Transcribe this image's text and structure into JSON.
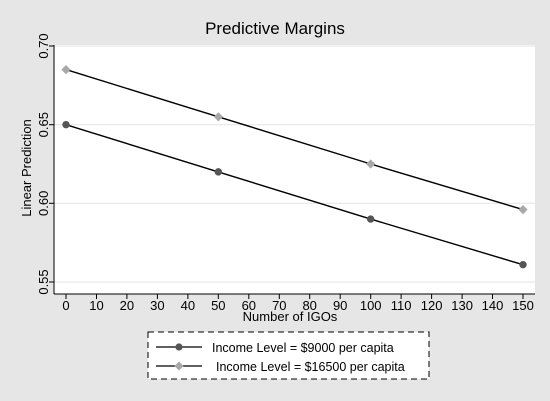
{
  "chart_data": {
    "type": "line",
    "title": "Predictive Margins",
    "xlabel": "Number of IGOs",
    "ylabel": "Linear Prediction",
    "x": [
      0,
      50,
      100,
      150
    ],
    "xticks": [
      0,
      10,
      20,
      30,
      40,
      50,
      60,
      70,
      80,
      90,
      100,
      110,
      120,
      130,
      140,
      150
    ],
    "xtick_labels": [
      "0",
      "10",
      "20",
      "30",
      "40",
      "50",
      "60",
      "70",
      "80",
      "90",
      "100",
      "110",
      "120",
      "130",
      "140",
      "150"
    ],
    "yticks": [
      0.55,
      0.6,
      0.65,
      0.7
    ],
    "ytick_labels": [
      "0.55",
      "0.60",
      "0.65",
      "0.70"
    ],
    "xlim": [
      0,
      150
    ],
    "ylim": [
      0.55,
      0.7
    ],
    "grid": "horizontal",
    "legend_position": "bottom",
    "series": [
      {
        "name": "Income Level = $9000 per capita",
        "values": [
          0.65,
          0.62,
          0.59,
          0.561
        ],
        "marker": "circle",
        "color": "#555555"
      },
      {
        "name": "Income Level = $16500 per capita",
        "values": [
          0.685,
          0.655,
          0.625,
          0.596
        ],
        "marker": "diamond",
        "color": "#a8a8a8"
      }
    ]
  },
  "colors": {
    "outer_background": "#e6e6e6",
    "plot_background": "#ffffff",
    "line": "#000000",
    "gridline": "#e3e3e3"
  }
}
